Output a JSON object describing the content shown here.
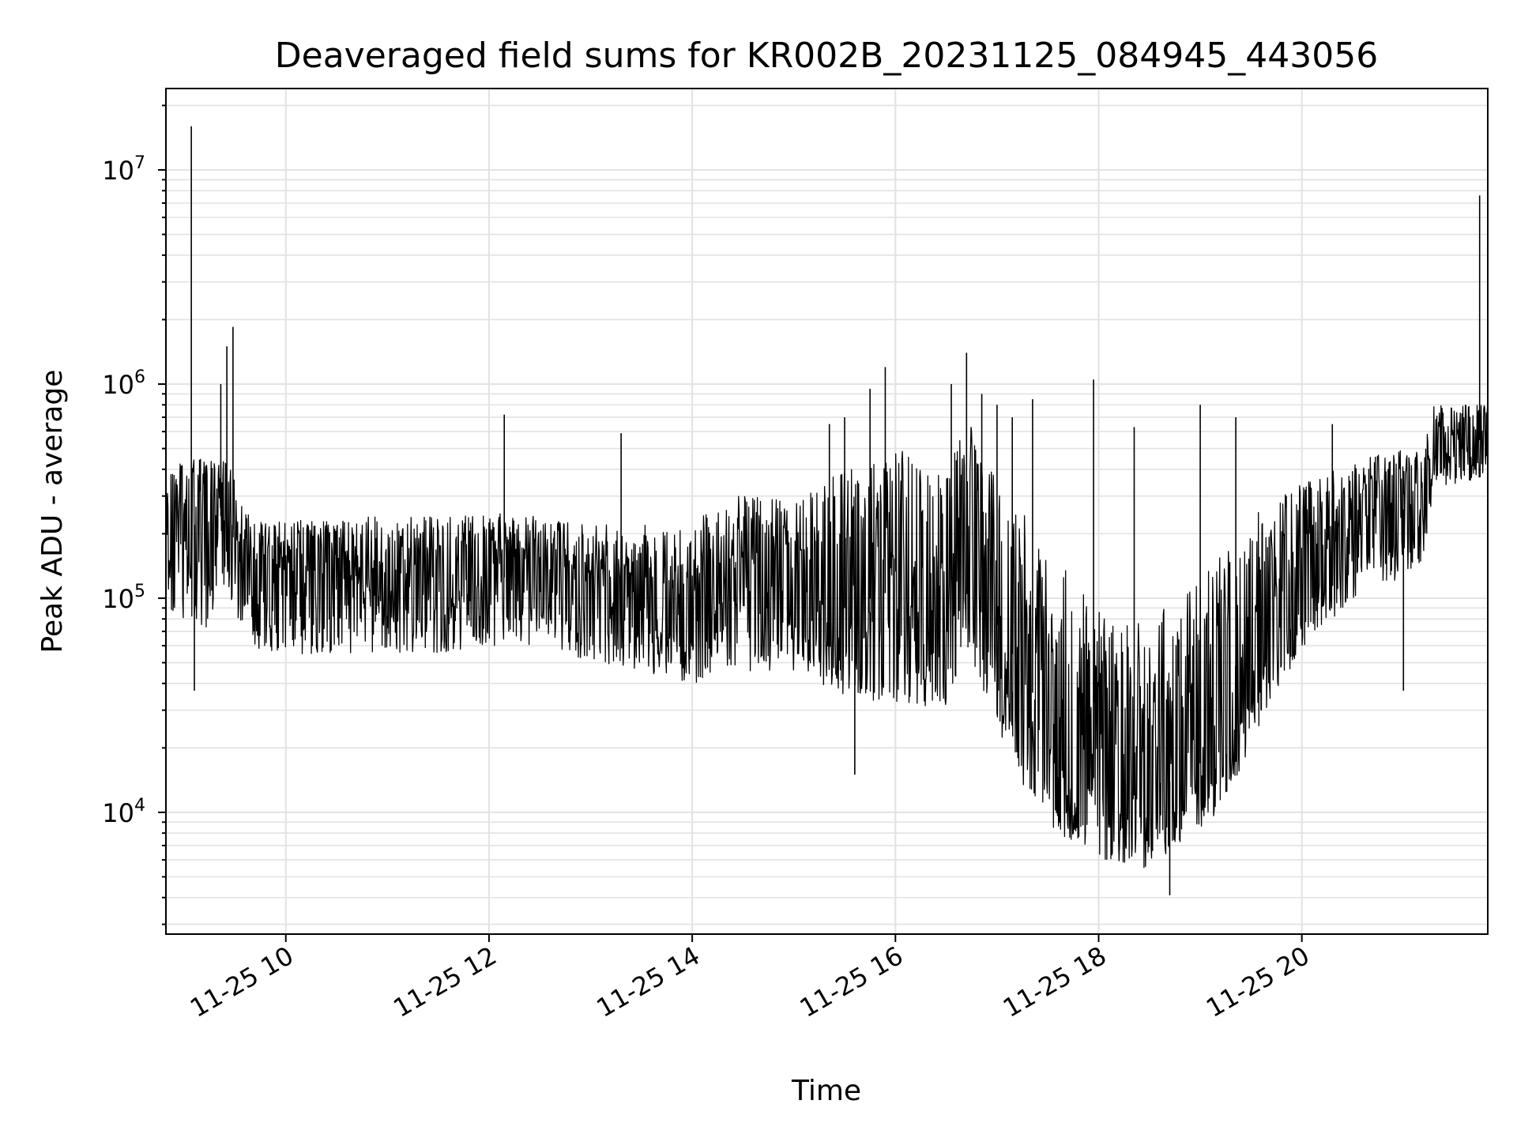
{
  "chart_data": {
    "type": "line",
    "title": "Deaveraged field sums for KR002B_20231125_084945_443056",
    "xlabel": "Time",
    "ylabel": "Peak ADU - average",
    "yscale": "log",
    "grid": "on (major and minor)",
    "legend": "none",
    "line_color": "#000000",
    "x_unit": "hours of 2023-11-25",
    "xlim": [
      8.82,
      21.83
    ],
    "ylim": [
      2700,
      24000000
    ],
    "x_ticks": [
      10,
      12,
      14,
      16,
      18,
      20
    ],
    "x_tick_labels": [
      "11-25 10",
      "11-25 12",
      "11-25 14",
      "11-25 16",
      "11-25 18",
      "11-25 20"
    ],
    "y_ticks": [
      10000,
      100000,
      1000000,
      10000000
    ],
    "y_tick_labels": [
      {
        "base": "10",
        "exp": "4"
      },
      {
        "base": "10",
        "exp": "5"
      },
      {
        "base": "10",
        "exp": "6"
      },
      {
        "base": "10",
        "exp": "7"
      }
    ],
    "series": [
      {
        "x": [
          8.82,
          9.0,
          9.2,
          9.4,
          9.6,
          9.8,
          10.0,
          10.5,
          11.0,
          11.5,
          12.0,
          12.5,
          13.0,
          13.5,
          14.0,
          14.5,
          15.0,
          15.5,
          16.0,
          16.5,
          16.7,
          17.0,
          17.3,
          17.6,
          17.9,
          18.2,
          18.5,
          18.8,
          19.1,
          19.4,
          19.7,
          20.0,
          20.3,
          20.6,
          20.9,
          21.2,
          21.3,
          21.5,
          21.7,
          21.83
        ],
        "mid": [
          180000,
          230000,
          210000,
          250000,
          130000,
          120000,
          125000,
          120000,
          120000,
          120000,
          125000,
          125000,
          110000,
          100000,
          100000,
          125000,
          120000,
          90000,
          110000,
          90000,
          300000,
          75000,
          40000,
          22000,
          15000,
          12000,
          12000,
          15000,
          18000,
          30000,
          70000,
          100000,
          150000,
          220000,
          250000,
          280000,
          500000,
          520000,
          540000,
          560000
        ],
        "lo": [
          90000,
          70000,
          70000,
          110000,
          65000,
          55000,
          55000,
          55000,
          55000,
          55000,
          60000,
          60000,
          50000,
          45000,
          40000,
          45000,
          45000,
          35000,
          32000,
          30000,
          60000,
          25000,
          12000,
          8000,
          6500,
          5500,
          5500,
          7000,
          9000,
          15000,
          35000,
          55000,
          80000,
          110000,
          120000,
          150000,
          330000,
          330000,
          360000,
          380000
        ],
        "hi": [
          380000,
          450000,
          450000,
          500000,
          250000,
          230000,
          230000,
          240000,
          240000,
          240000,
          250000,
          240000,
          220000,
          220000,
          230000,
          320000,
          280000,
          400000,
          500000,
          400000,
          700000,
          350000,
          250000,
          150000,
          100000,
          80000,
          80000,
          100000,
          140000,
          200000,
          300000,
          350000,
          400000,
          450000,
          500000,
          520000,
          800000,
          800000,
          800000,
          800000
        ]
      }
    ],
    "spikes": [
      {
        "x": 9.07,
        "y": 16000000
      },
      {
        "x": 9.48,
        "y": 1850000
      },
      {
        "x": 9.42,
        "y": 1500000
      },
      {
        "x": 9.36,
        "y": 1000000
      },
      {
        "x": 9.1,
        "y": 37000
      },
      {
        "x": 12.15,
        "y": 720000
      },
      {
        "x": 13.3,
        "y": 590000
      },
      {
        "x": 15.35,
        "y": 650000
      },
      {
        "x": 15.5,
        "y": 700000
      },
      {
        "x": 15.75,
        "y": 950000
      },
      {
        "x": 15.9,
        "y": 1200000
      },
      {
        "x": 15.6,
        "y": 15000
      },
      {
        "x": 16.55,
        "y": 1000000
      },
      {
        "x": 16.7,
        "y": 1400000
      },
      {
        "x": 16.85,
        "y": 900000
      },
      {
        "x": 17.0,
        "y": 800000
      },
      {
        "x": 17.15,
        "y": 700000
      },
      {
        "x": 17.35,
        "y": 850000
      },
      {
        "x": 17.95,
        "y": 1050000
      },
      {
        "x": 18.35,
        "y": 630000
      },
      {
        "x": 18.7,
        "y": 4100
      },
      {
        "x": 19.0,
        "y": 800000
      },
      {
        "x": 19.35,
        "y": 700000
      },
      {
        "x": 20.3,
        "y": 650000
      },
      {
        "x": 21.0,
        "y": 37000
      },
      {
        "x": 21.75,
        "y": 7600000
      }
    ]
  }
}
